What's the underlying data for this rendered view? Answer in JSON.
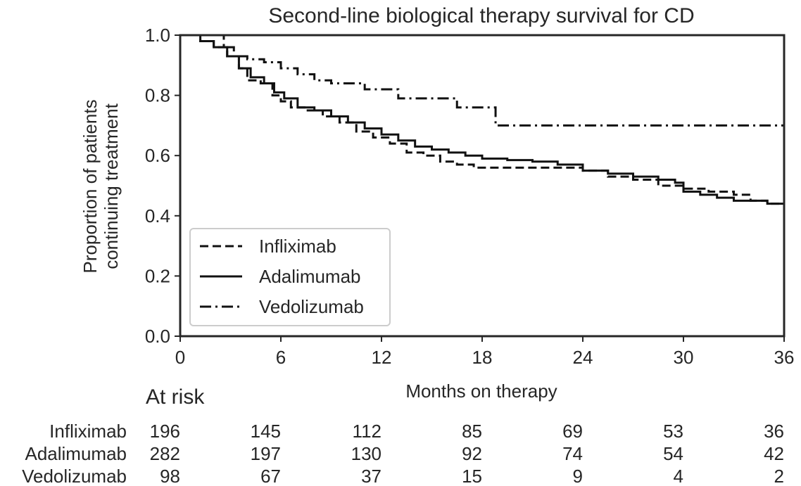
{
  "chart_data": {
    "type": "line",
    "subtype": "step",
    "title": "Second-line biological therapy survival for CD",
    "xlabel": "Months on therapy",
    "ylabel": "Proportion of patients\ncontinuing treatment",
    "xlim": [
      0,
      36
    ],
    "ylim": [
      0,
      1.0
    ],
    "xticks": [
      0,
      6,
      12,
      18,
      24,
      30,
      36
    ],
    "yticks": [
      "0.0",
      "0.2",
      "0.4",
      "0.6",
      "0.8",
      "1.0"
    ],
    "grid": false,
    "legend": "lower-left",
    "series": [
      {
        "name": "Infliximab",
        "style": "dashed",
        "x": [
          0.7,
          1.2,
          2.0,
          2.8,
          3.5,
          4.0,
          4.8,
          5.5,
          6.0,
          6.6,
          7.5,
          8.5,
          9.5,
          10.5,
          11.5,
          12.5,
          13.5,
          14.5,
          15.5,
          16.5,
          17.5,
          18.5,
          19.5,
          21.0,
          22.5,
          24.0,
          25.5,
          27.0,
          28.5,
          30.0,
          31.5,
          33.0,
          34.0,
          35.0,
          36.0
        ],
        "y": [
          1.0,
          0.98,
          0.96,
          0.93,
          0.89,
          0.85,
          0.84,
          0.8,
          0.78,
          0.76,
          0.75,
          0.73,
          0.71,
          0.68,
          0.66,
          0.64,
          0.61,
          0.6,
          0.58,
          0.57,
          0.56,
          0.56,
          0.56,
          0.56,
          0.56,
          0.55,
          0.53,
          0.52,
          0.5,
          0.49,
          0.48,
          0.47,
          0.45,
          0.44,
          0.43
        ]
      },
      {
        "name": "Adalimumab",
        "style": "solid",
        "x": [
          0.7,
          1.2,
          2.0,
          2.8,
          3.5,
          4.2,
          5.0,
          5.6,
          6.2,
          7.0,
          8.0,
          9.0,
          10.0,
          11.0,
          12.0,
          13.0,
          14.0,
          15.0,
          16.0,
          17.0,
          18.0,
          19.5,
          21.0,
          22.5,
          24.0,
          25.5,
          27.0,
          28.5,
          29.5,
          30.0,
          31.0,
          32.0,
          33.0,
          34.0,
          35.0,
          36.0
        ],
        "y": [
          1.0,
          0.98,
          0.96,
          0.93,
          0.89,
          0.86,
          0.84,
          0.81,
          0.79,
          0.76,
          0.75,
          0.73,
          0.71,
          0.69,
          0.67,
          0.65,
          0.63,
          0.62,
          0.61,
          0.6,
          0.59,
          0.585,
          0.58,
          0.57,
          0.55,
          0.54,
          0.53,
          0.52,
          0.51,
          0.48,
          0.47,
          0.46,
          0.45,
          0.45,
          0.44,
          0.43
        ]
      },
      {
        "name": "Vedolizumab",
        "style": "dashdot",
        "x": [
          2.2,
          2.6,
          3.2,
          4.0,
          5.0,
          6.0,
          7.0,
          8.0,
          9.0,
          10.0,
          11.0,
          12.0,
          13.0,
          14.0,
          15.0,
          16.5,
          17.0,
          18.0,
          18.8,
          19.5,
          24.0,
          30.0,
          36.0
        ],
        "y": [
          1.0,
          0.96,
          0.93,
          0.92,
          0.91,
          0.89,
          0.87,
          0.85,
          0.84,
          0.84,
          0.82,
          0.82,
          0.79,
          0.79,
          0.79,
          0.76,
          0.76,
          0.76,
          0.7,
          0.7,
          0.7,
          0.7,
          0.7
        ]
      }
    ],
    "at_risk": {
      "title": "At risk",
      "times": [
        0,
        6,
        12,
        18,
        24,
        30,
        36
      ],
      "rows": [
        {
          "name": "Infliximab",
          "values": [
            "196",
            "145",
            "112",
            "85",
            "69",
            "53",
            "36"
          ]
        },
        {
          "name": "Adalimumab",
          "values": [
            "282",
            "197",
            "130",
            "92",
            "74",
            "54",
            "42"
          ]
        },
        {
          "name": "Vedolizumab",
          "values": [
            "98",
            "67",
            "37",
            "15",
            "9",
            "4",
            "2"
          ]
        }
      ]
    }
  }
}
